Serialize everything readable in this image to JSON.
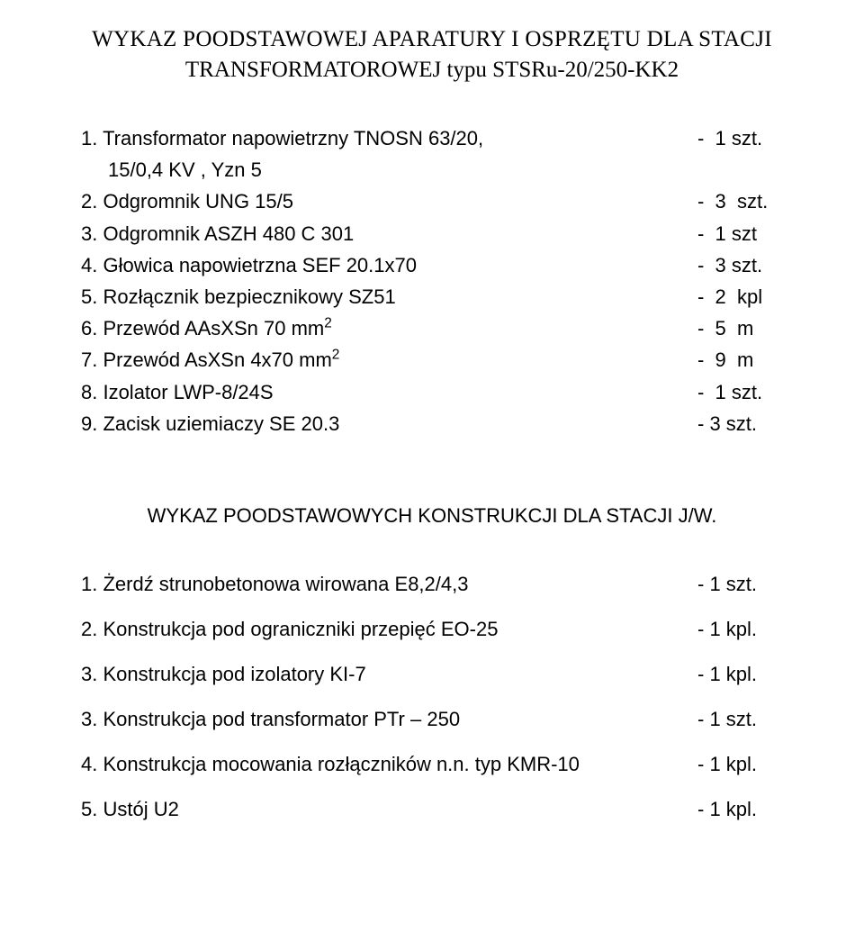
{
  "title": {
    "line1": "WYKAZ  POODSTAWOWEJ  APARATURY  I  OSPRZĘTU DLA  STACJI",
    "line2": "TRANSFORMATOROWEJ  typu  STSRu-20/250-KK2"
  },
  "list1": {
    "items": [
      {
        "num": "1.",
        "text": "Transformator napowietrzny  TNOSN   63/20,",
        "value": "-  1 szt."
      },
      {
        "num": "",
        "text": "15/0,4 KV  ,  Yzn 5",
        "value": "",
        "indent": true
      },
      {
        "num": "2.",
        "text": "Odgromnik   UNG  15/5",
        "value": "-  3  szt."
      },
      {
        "num": "3.",
        "text": "Odgromnik   ASZH 480 C 301",
        "value": "-  1 szt"
      },
      {
        "num": "4.",
        "text": "Głowica napowietrzna SEF 20.1x70",
        "value": "-  3 szt."
      },
      {
        "num": "5.",
        "text": "Rozłącznik  bezpiecznikowy SZ51",
        "value": "-  2  kpl"
      },
      {
        "num": "6.",
        "text": "Przewód AAsXSn  70 mm",
        "sup": "2",
        "value": "-  5  m"
      },
      {
        "num": "7.",
        "text": "Przewód  AsXSn  4x70 mm",
        "sup": "2",
        "value": "-  9  m"
      },
      {
        "num": "8.",
        "text": "Izolator LWP-8/24S",
        "value": "-  1 szt."
      },
      {
        "num": "9.",
        "text": "Zacisk uziemiaczy SE 20.3",
        "value": "- 3 szt."
      }
    ]
  },
  "subtitle": "WYKAZ  POODSTAWOWYCH KONSTRUKCJI DLA STACJI J/W.",
  "list2": {
    "items": [
      {
        "num": "1.",
        "text": "Żerdź strunobetonowa wirowana E8,2/4,3",
        "value": "- 1 szt."
      },
      {
        "num": "2.",
        "text": "Konstrukcja pod ograniczniki przepięć EO-25",
        "value": "- 1 kpl."
      },
      {
        "num": "3.",
        "text": "Konstrukcja pod izolatory KI-7",
        "value": "- 1 kpl."
      },
      {
        "num": "3.",
        "text": "Konstrukcja pod transformator PTr – 250",
        "value": "- 1 szt."
      },
      {
        "num": "4.",
        "text": "Konstrukcja mocowania rozłączników n.n. typ KMR-10",
        "value": "- 1 kpl."
      },
      {
        "num": "5.",
        "text": "Ustój U2",
        "value": "- 1 kpl."
      }
    ]
  }
}
